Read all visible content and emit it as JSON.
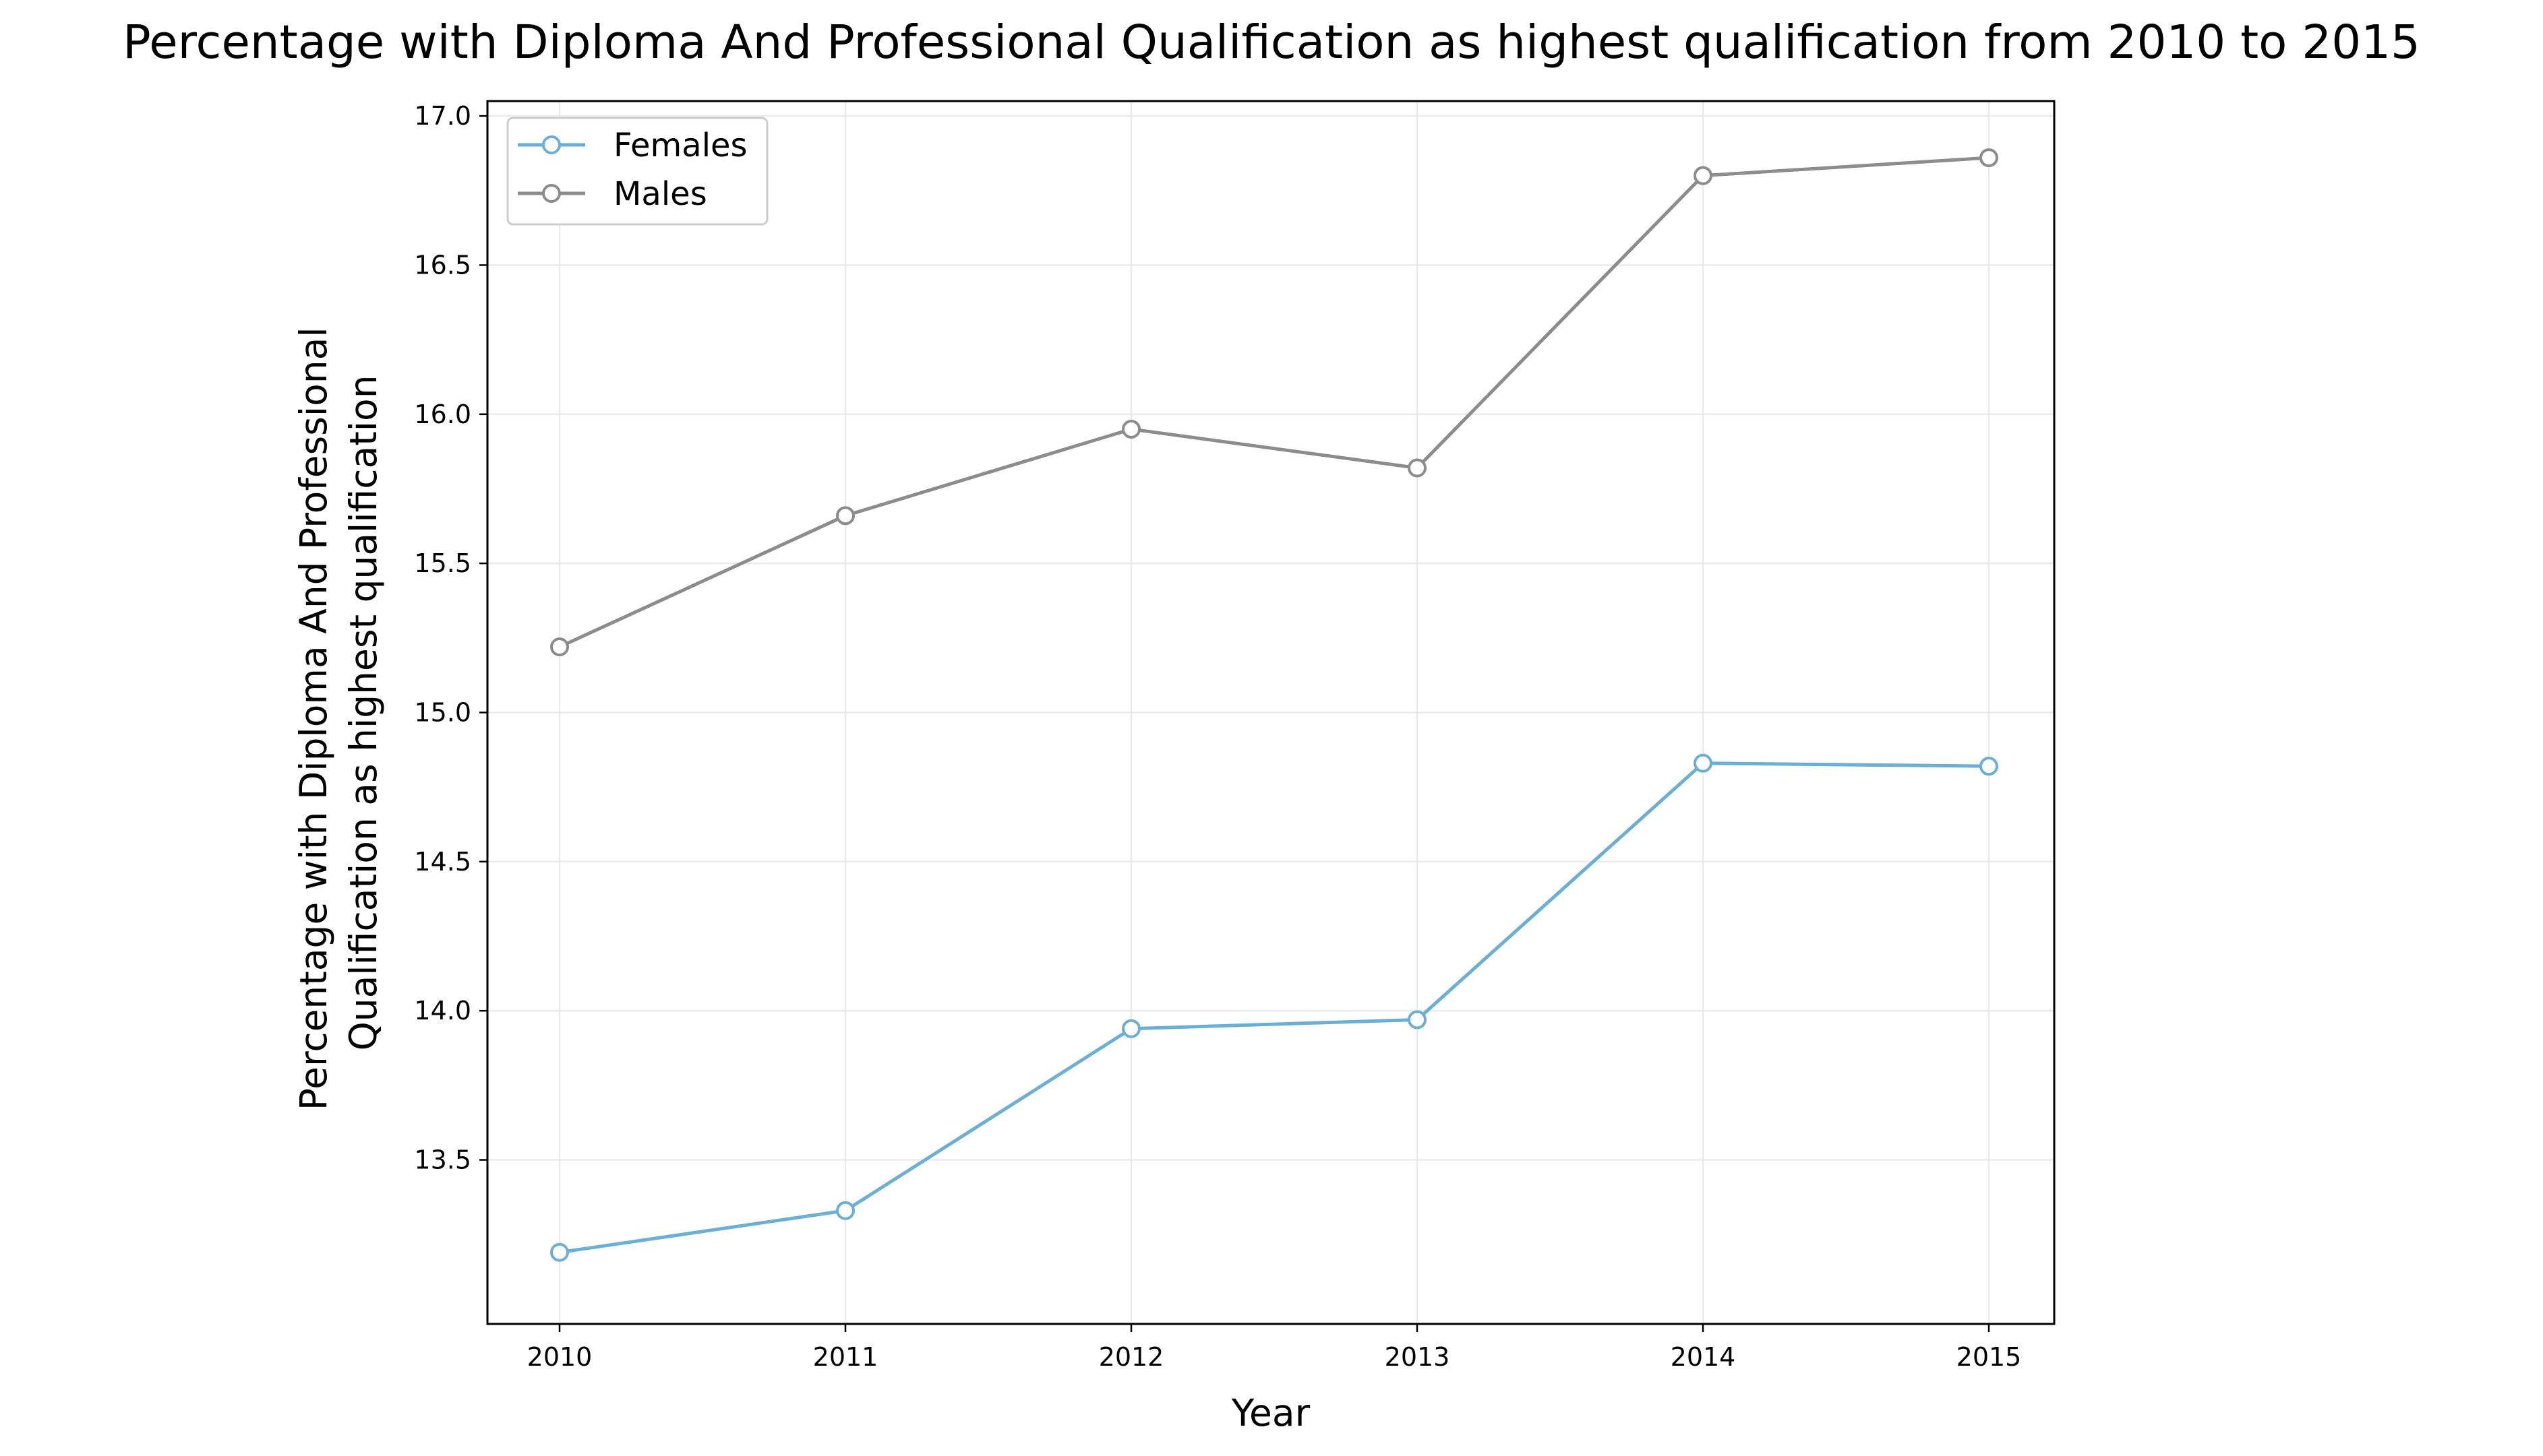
{
  "chart_data": {
    "type": "line",
    "title": "Percentage with Diploma And Professional Qualification as highest qualification from 2010 to 2015",
    "xlabel": "Year",
    "ylabel": [
      "Percentage with Diploma And Professional",
      "Qualification as highest qualification"
    ],
    "x": [
      "2010",
      "2011",
      "2012",
      "2013",
      "2014",
      "2015"
    ],
    "y_ticks": [
      "13.5",
      "14.0",
      "14.5",
      "15.0",
      "15.5",
      "16.0",
      "16.5",
      "17.0"
    ],
    "ylim": [
      12.95,
      17.05
    ],
    "grid": true,
    "legend_position": "top-left",
    "series": [
      {
        "name": "Females",
        "color": "#6baed6",
        "values": [
          13.19,
          13.33,
          13.94,
          13.97,
          14.83,
          14.82
        ]
      },
      {
        "name": "Males",
        "color": "#8c8c8c",
        "values": [
          15.22,
          15.66,
          15.95,
          15.82,
          16.8,
          16.86
        ]
      }
    ]
  }
}
